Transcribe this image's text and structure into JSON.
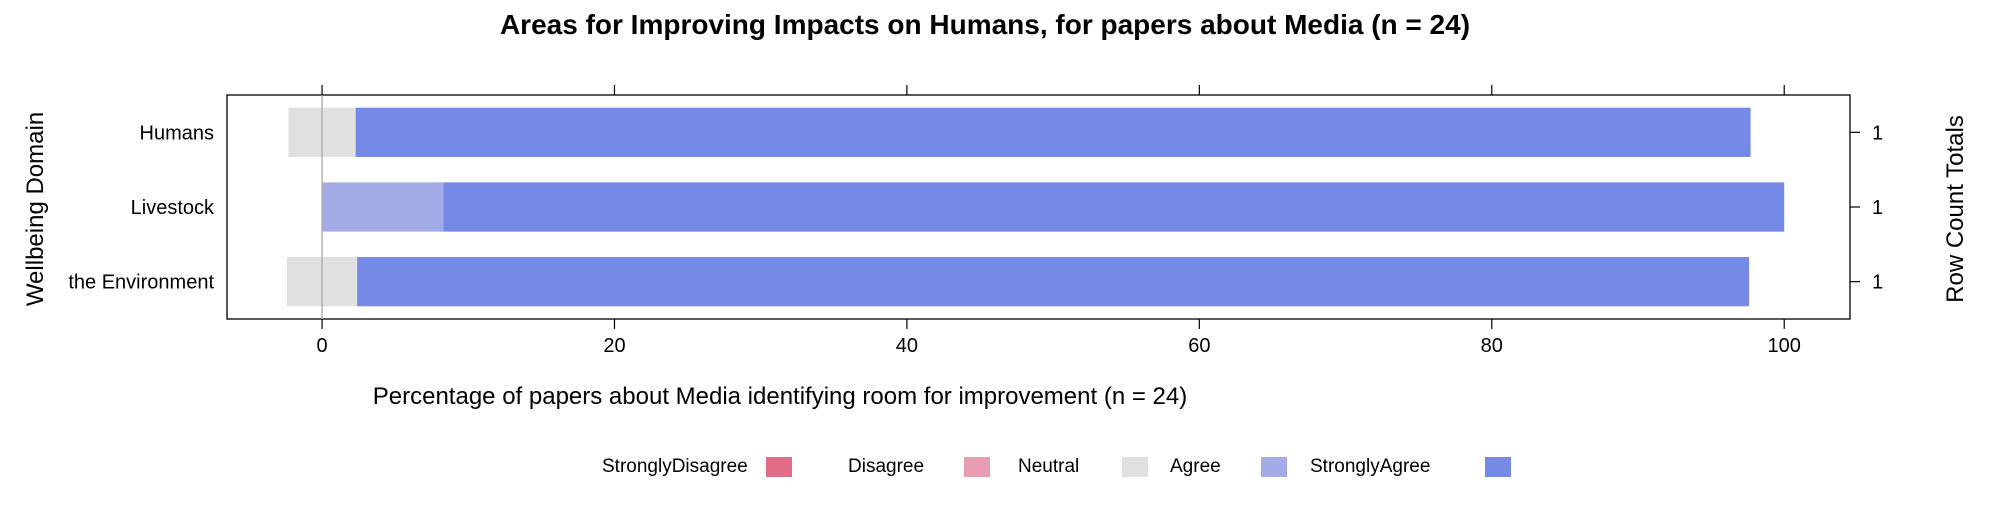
{
  "chart_data": {
    "type": "bar",
    "subtype": "diverging-stacked-likert",
    "title": "Areas for Improving Impacts on Humans, for papers about Media (n = 24)",
    "xlabel": "Percentage of papers about Media identifying room for improvement (n = 24)",
    "ylabel": "Wellbeing Domain",
    "ylabel_right": "Row Count Totals",
    "xlim": [
      -6.5,
      104.5
    ],
    "xticks": [
      0,
      20,
      40,
      60,
      80,
      100
    ],
    "xtick_labels": [
      "0",
      "20",
      "40",
      "60",
      "80",
      "100"
    ],
    "grid": false,
    "legend_position": "bottom",
    "categories": [
      "Humans",
      "Livestock",
      "the Environment"
    ],
    "row_totals": [
      "1",
      "1",
      "1"
    ],
    "series": [
      {
        "name": "StronglyDisagree",
        "color": "#E06C87",
        "values": [
          0,
          0,
          0
        ]
      },
      {
        "name": "Disagree",
        "color": "#E89EAE",
        "values": [
          0,
          0,
          0
        ]
      },
      {
        "name": "Neutral",
        "color": "#E0E0E0",
        "values": [
          4.6,
          0,
          4.8
        ]
      },
      {
        "name": "Agree",
        "color": "#A3ABE6",
        "values": [
          0,
          8.3,
          0
        ]
      },
      {
        "name": "StronglyAgree",
        "color": "#7589E6",
        "values": [
          95.4,
          91.7,
          95.2
        ]
      }
    ]
  }
}
